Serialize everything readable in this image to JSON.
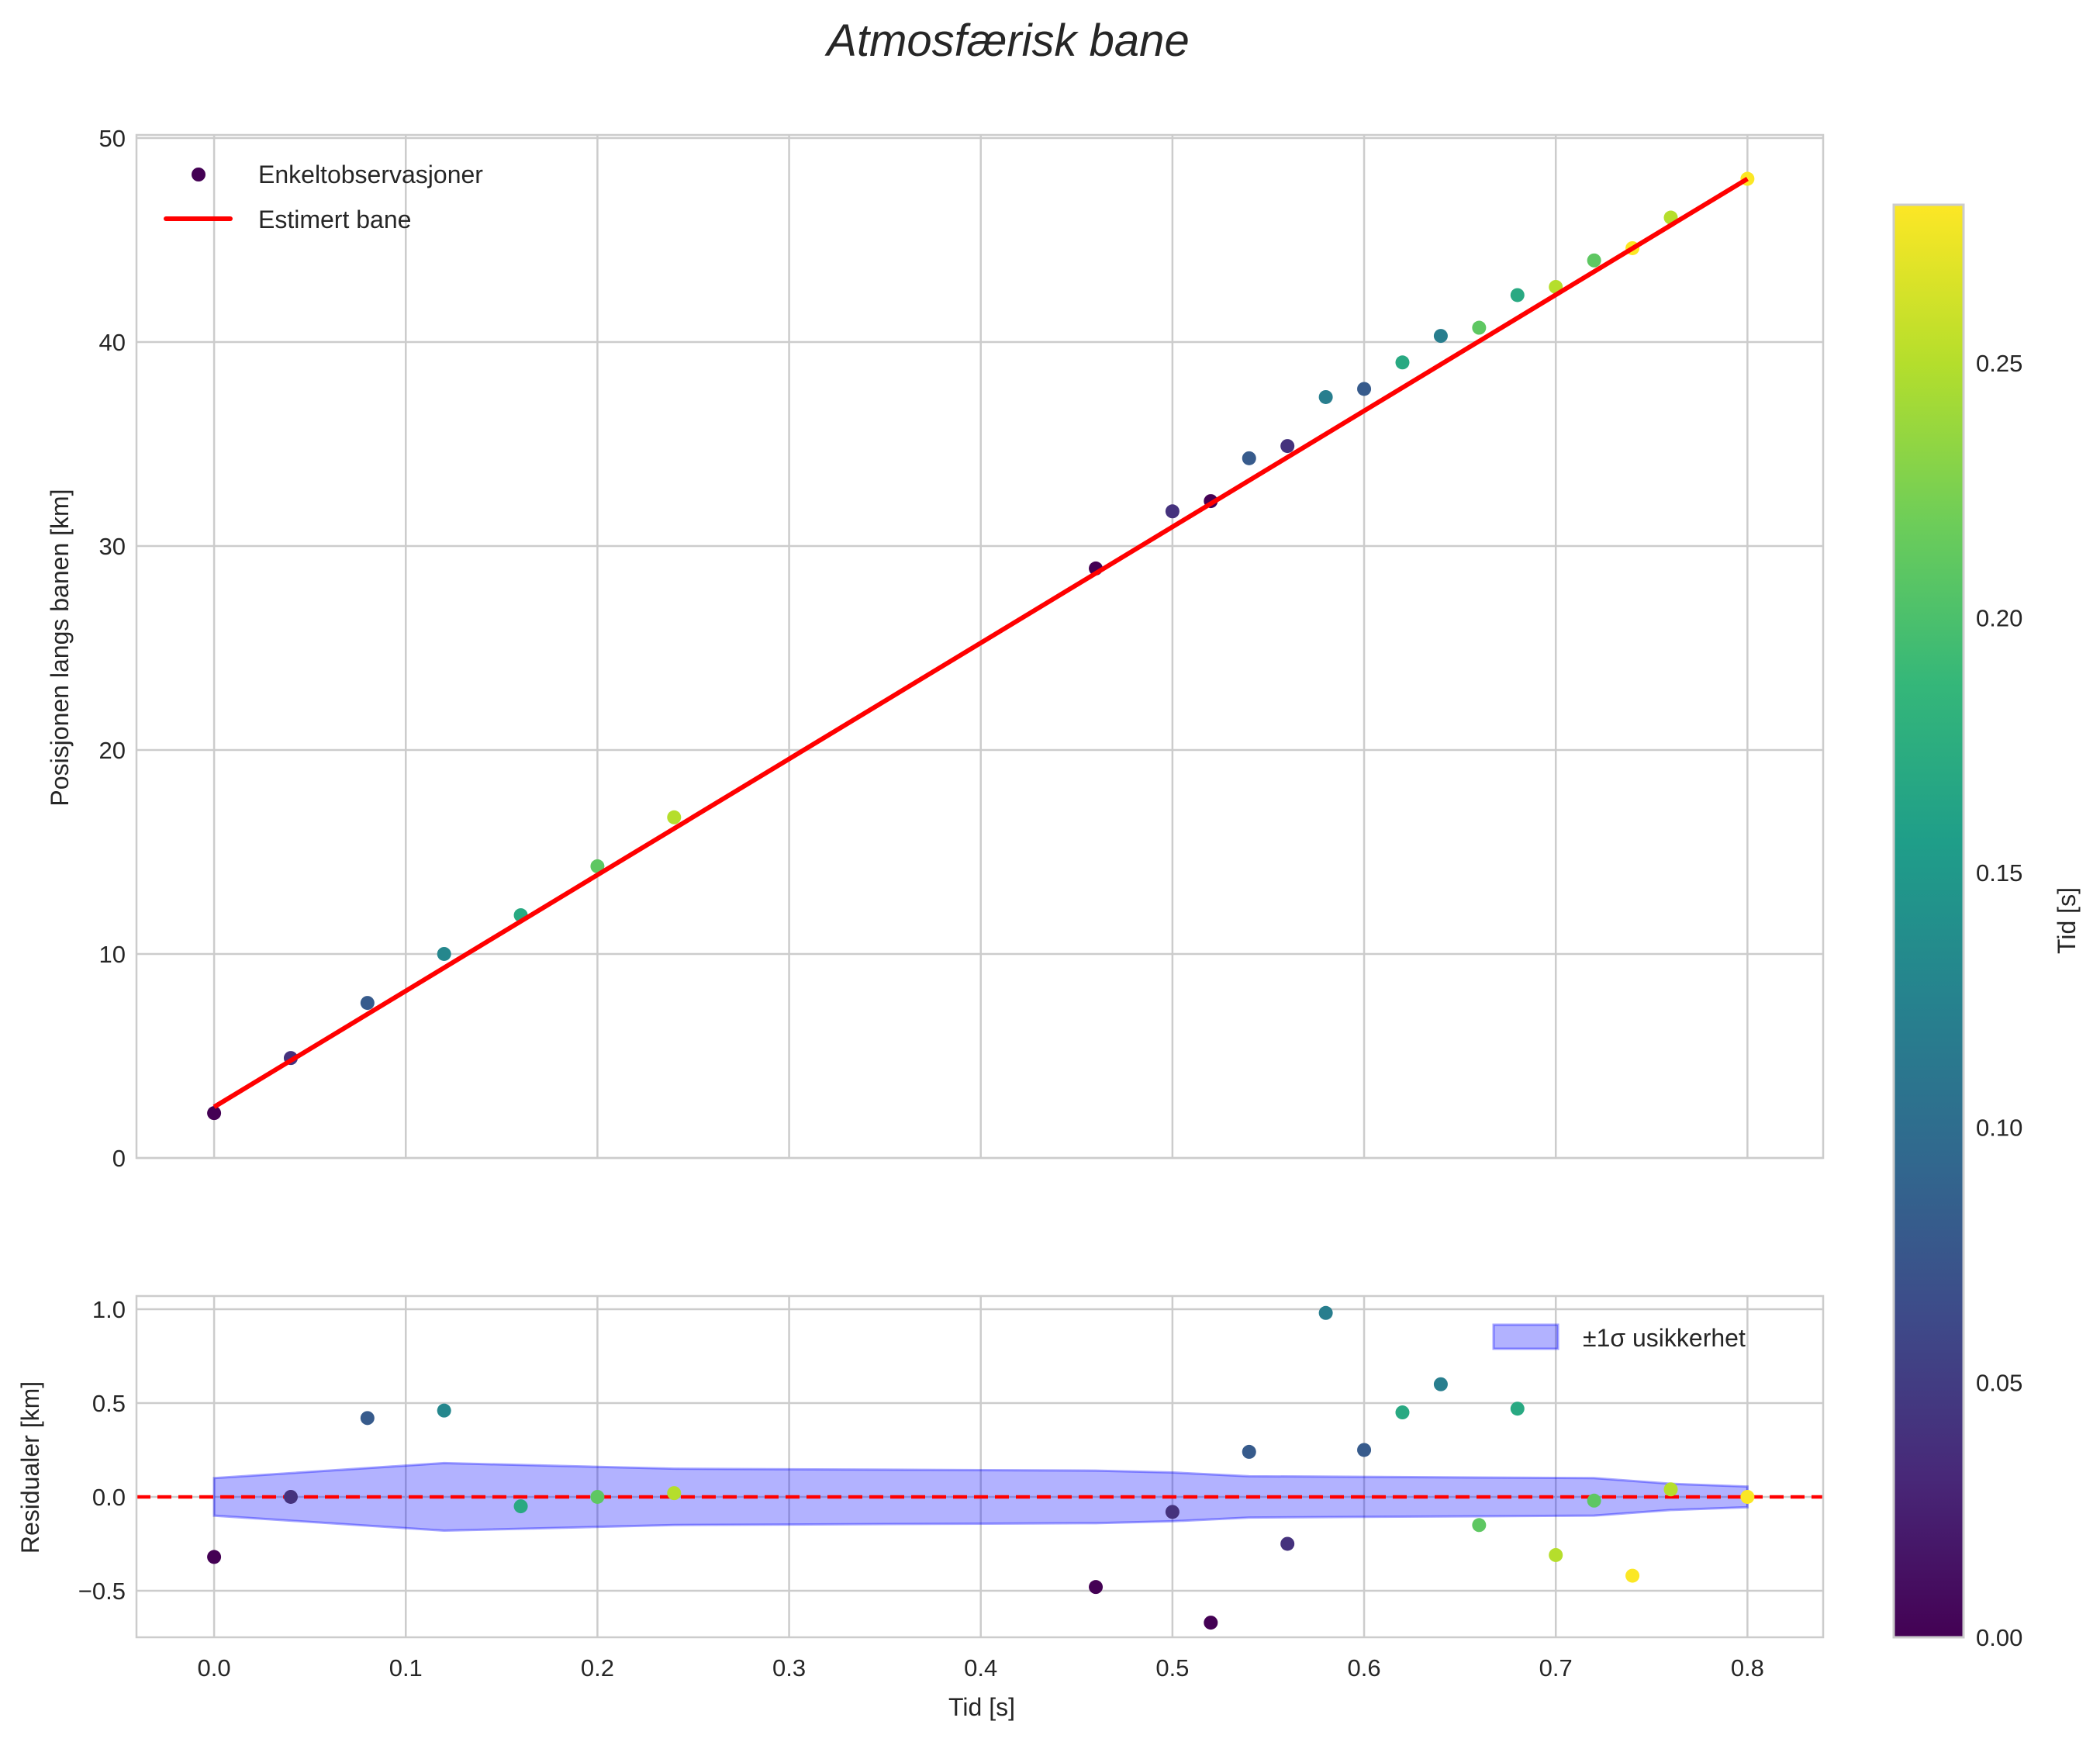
{
  "chart_data": [
    {
      "type": "scatter",
      "title": "Atmosfærisk bane",
      "xlabel": "",
      "ylabel": "Posisjonen langs banen [km]",
      "xlim": [
        -0.0405,
        0.8395
      ],
      "ylim": [
        0,
        50.15
      ],
      "xticks": [
        0.0,
        0.1,
        0.2,
        0.3,
        0.4,
        0.5,
        0.6,
        0.7,
        0.8
      ],
      "yticks": [
        0,
        10,
        20,
        30,
        40,
        50
      ],
      "grid": true,
      "legend": {
        "placement": "top-left",
        "entries": [
          "Enkeltobservasjoner",
          "Estimert bane"
        ]
      },
      "series": [
        {
          "name": "Enkeltobservasjoner",
          "kind": "scatter",
          "x": [
            0.0,
            0.04,
            0.08,
            0.12,
            0.16,
            0.2,
            0.24,
            0.46,
            0.5,
            0.52,
            0.54,
            0.56,
            0.58,
            0.6,
            0.62,
            0.64,
            0.66,
            0.68,
            0.7,
            0.72,
            0.74,
            0.76,
            0.8
          ],
          "y": [
            2.2,
            4.9,
            7.6,
            10.0,
            11.9,
            14.3,
            16.7,
            28.9,
            31.7,
            32.2,
            34.3,
            34.9,
            37.3,
            37.7,
            39.0,
            40.3,
            40.7,
            42.3,
            42.7,
            44.0,
            44.6,
            46.1,
            48.0
          ],
          "c": [
            0.0,
            0.04,
            0.08,
            0.13,
            0.17,
            0.21,
            0.25,
            0.0,
            0.04,
            0.0,
            0.08,
            0.04,
            0.12,
            0.08,
            0.17,
            0.12,
            0.21,
            0.17,
            0.25,
            0.21,
            0.28,
            0.25,
            0.28
          ]
        },
        {
          "name": "Estimert bane",
          "kind": "line",
          "color": "#ff0000",
          "x": [
            0.0,
            0.8
          ],
          "y": [
            2.5,
            48.0
          ]
        }
      ]
    },
    {
      "type": "scatter",
      "xlabel": "Tid [s]",
      "ylabel": "Residualer [km]",
      "xlim": [
        -0.0405,
        0.8395
      ],
      "ylim": [
        -0.748,
        1.07
      ],
      "xticks": [
        0.0,
        0.1,
        0.2,
        0.3,
        0.4,
        0.5,
        0.6,
        0.7,
        0.8
      ],
      "xtick_labels": [
        "0.0",
        "0.1",
        "0.2",
        "0.3",
        "0.4",
        "0.5",
        "0.6",
        "0.7",
        "0.8"
      ],
      "yticks": [
        -0.5,
        0.0,
        0.5,
        1.0
      ],
      "ytick_labels": [
        "−0.5",
        "0.0",
        "0.5",
        "1.0"
      ],
      "grid": true,
      "legend": {
        "placement": "top-right",
        "entries": [
          "±1σ usikkerhet"
        ]
      },
      "band": {
        "name": "±1σ usikkerhet",
        "color": "#0000ff",
        "x": [
          0.0,
          0.12,
          0.24,
          0.46,
          0.5,
          0.54,
          0.72,
          0.76,
          0.8
        ],
        "sigma": [
          0.1,
          0.18,
          0.15,
          0.14,
          0.13,
          0.11,
          0.1,
          0.07,
          0.055
        ]
      },
      "zero_line": {
        "y": 0.0,
        "color": "#ff0000",
        "style": "dashed"
      },
      "residuals": {
        "x": [
          0.0,
          0.04,
          0.08,
          0.12,
          0.16,
          0.2,
          0.24,
          0.46,
          0.5,
          0.52,
          0.54,
          0.56,
          0.58,
          0.6,
          0.62,
          0.64,
          0.66,
          0.68,
          0.7,
          0.72,
          0.74,
          0.76,
          0.8
        ],
        "y": [
          -0.32,
          0.0,
          0.42,
          0.46,
          -0.05,
          0.0,
          0.02,
          -0.48,
          -0.08,
          -0.67,
          0.24,
          -0.25,
          0.98,
          0.25,
          0.45,
          0.6,
          -0.15,
          0.47,
          -0.31,
          -0.02,
          -0.42,
          0.04,
          0.0
        ],
        "c": [
          0.0,
          0.04,
          0.08,
          0.13,
          0.17,
          0.21,
          0.25,
          0.0,
          0.04,
          0.0,
          0.08,
          0.04,
          0.12,
          0.08,
          0.17,
          0.12,
          0.21,
          0.17,
          0.25,
          0.21,
          0.28,
          0.25,
          0.28
        ]
      }
    }
  ],
  "colorbar": {
    "label": "Tid [s]",
    "colormap": "viridis",
    "range": [
      0,
      0.281
    ],
    "ticks": [
      0.0,
      0.05,
      0.1,
      0.15,
      0.2,
      0.25
    ],
    "tick_labels": [
      "0.00",
      "0.05",
      "0.10",
      "0.15",
      "0.20",
      "0.25"
    ]
  }
}
